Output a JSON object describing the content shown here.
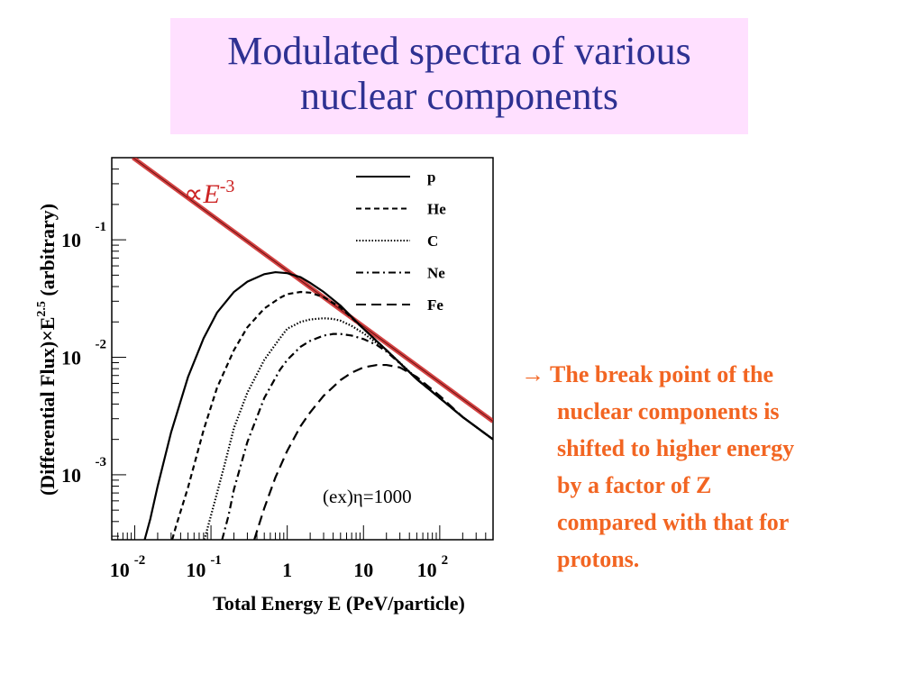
{
  "slide": {
    "title_line1": "Modulated spectra of various",
    "title_line2": "nuclear components",
    "note_arrow": "→",
    "note_lines": [
      "The break point of the",
      "nuclear components is",
      "shifted to higher energy",
      "by a factor of Z",
      "compared with that for",
      "protons."
    ],
    "colors": {
      "title": "#2e3192",
      "title_bg": "#ffe0ff",
      "note": "#f26522",
      "power_law": "#cc2222"
    }
  },
  "chart_data": {
    "type": "line",
    "xlabel": "Total Energy E (PeV/particle)",
    "ylabel": "(Differential Flux)×E",
    "ylabel_exp": "2.5",
    "ylabel_suffix": " (arbitrary)",
    "x_scale": "log",
    "y_scale": "log",
    "xlim": [
      0.005,
      500
    ],
    "ylim": [
      0.00028,
      0.5
    ],
    "x_ticks": [
      {
        "value": 0.01,
        "base": "10",
        "exp": "-2"
      },
      {
        "value": 0.1,
        "base": "10",
        "exp": "-1"
      },
      {
        "value": 1,
        "base": "1",
        "exp": ""
      },
      {
        "value": 10,
        "base": "10",
        "exp": ""
      },
      {
        "value": 100,
        "base": "10",
        "exp": "2"
      }
    ],
    "y_ticks": [
      {
        "value": 0.1,
        "base": "10",
        "exp": "-1"
      },
      {
        "value": 0.01,
        "base": "10",
        "exp": "-2"
      },
      {
        "value": 0.001,
        "base": "10",
        "exp": "-3"
      }
    ],
    "grid": false,
    "legend_position": "top-right",
    "annotation": "(ex)η=1000",
    "power_law": {
      "label_prefix": "∝",
      "label_var": "E",
      "label_exp": "-3",
      "x": [
        0.0095,
        500
      ],
      "y": [
        0.5,
        0.00285
      ]
    },
    "series": [
      {
        "name": "p",
        "dash": "solid",
        "x": [
          0.0135,
          0.016,
          0.02,
          0.03,
          0.05,
          0.08,
          0.12,
          0.2,
          0.3,
          0.5,
          0.7,
          1,
          1.5,
          2,
          3,
          5,
          10,
          20,
          50,
          100,
          200,
          500
        ],
        "y": [
          0.00028,
          0.00042,
          0.0008,
          0.0023,
          0.0068,
          0.0145,
          0.024,
          0.036,
          0.044,
          0.051,
          0.053,
          0.052,
          0.048,
          0.043,
          0.036,
          0.0275,
          0.0175,
          0.0115,
          0.0065,
          0.0045,
          0.0031,
          0.002
        ]
      },
      {
        "name": "He",
        "dash": "dashed",
        "x": [
          0.031,
          0.035,
          0.05,
          0.08,
          0.12,
          0.2,
          0.3,
          0.5,
          0.8,
          1,
          1.5,
          2,
          3,
          5,
          10,
          20,
          50,
          100,
          200,
          500
        ],
        "y": [
          0.00028,
          0.00037,
          0.00078,
          0.0024,
          0.0055,
          0.0115,
          0.018,
          0.026,
          0.032,
          0.0345,
          0.036,
          0.0355,
          0.0325,
          0.0265,
          0.0175,
          0.0115,
          0.0065,
          0.0045,
          0.0031,
          0.002
        ]
      },
      {
        "name": "C",
        "dash": "dotted",
        "x": [
          0.082,
          0.1,
          0.15,
          0.2,
          0.3,
          0.5,
          0.8,
          1,
          1.5,
          2,
          3,
          4,
          5,
          7,
          10,
          20,
          50,
          100,
          200,
          500
        ],
        "y": [
          0.00028,
          0.00045,
          0.0012,
          0.0025,
          0.005,
          0.0095,
          0.0145,
          0.0175,
          0.02,
          0.021,
          0.0215,
          0.0212,
          0.0205,
          0.0185,
          0.016,
          0.0115,
          0.0066,
          0.0045,
          0.0031,
          0.002
        ]
      },
      {
        "name": "Ne",
        "dash": "dashdot",
        "x": [
          0.14,
          0.17,
          0.2,
          0.3,
          0.5,
          0.8,
          1,
          1.5,
          2,
          3,
          4,
          5,
          7,
          10,
          15,
          20,
          50,
          100,
          200,
          500
        ],
        "y": [
          0.00028,
          0.00045,
          0.00075,
          0.0019,
          0.0045,
          0.0078,
          0.0095,
          0.0123,
          0.0138,
          0.0153,
          0.0158,
          0.0158,
          0.0153,
          0.0143,
          0.0127,
          0.0112,
          0.0066,
          0.0045,
          0.0031,
          0.002
        ]
      },
      {
        "name": "Fe",
        "dash": "longdash",
        "x": [
          0.37,
          0.4,
          0.5,
          0.7,
          1,
          1.5,
          2,
          3,
          5,
          7,
          10,
          15,
          20,
          30,
          50,
          100,
          200,
          500
        ],
        "y": [
          0.00028,
          0.00033,
          0.00052,
          0.00095,
          0.0016,
          0.0026,
          0.0034,
          0.0047,
          0.0064,
          0.0074,
          0.0082,
          0.0086,
          0.0086,
          0.0082,
          0.0068,
          0.0047,
          0.0031,
          0.002
        ]
      }
    ]
  }
}
